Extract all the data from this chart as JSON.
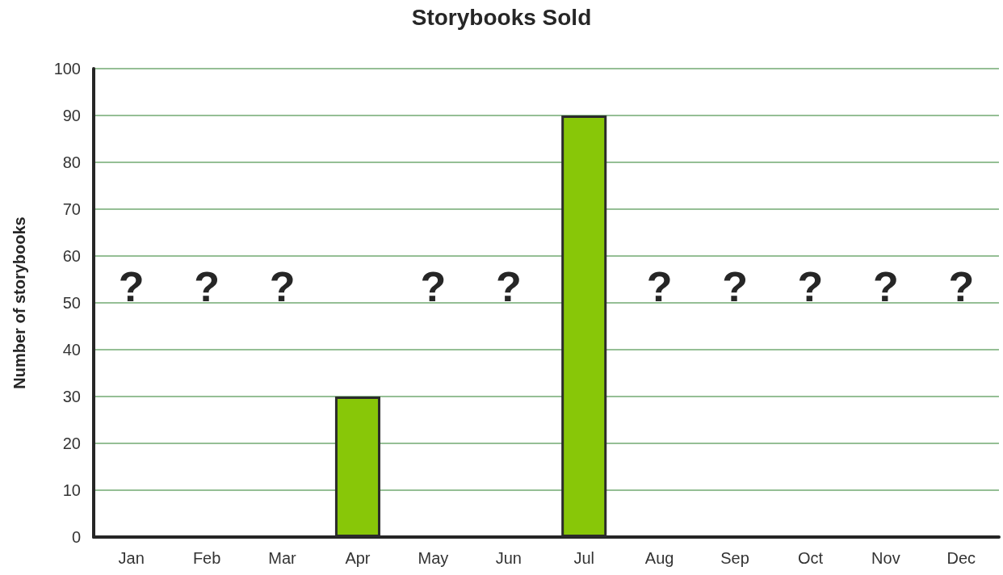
{
  "chart_data": {
    "type": "bar",
    "title": "Storybooks Sold",
    "ylabel": "Number of storybooks",
    "categories": [
      "Jan",
      "Feb",
      "Mar",
      "Apr",
      "May",
      "Jun",
      "Jul",
      "Aug",
      "Sep",
      "Oct",
      "Nov",
      "Dec"
    ],
    "values": [
      null,
      null,
      null,
      30,
      null,
      null,
      90,
      null,
      null,
      null,
      null,
      null
    ],
    "color": "#88c708",
    "ylim": [
      0,
      100
    ],
    "yticks": [
      0,
      10,
      20,
      30,
      40,
      50,
      60,
      70,
      80,
      90,
      100
    ],
    "grid": "y",
    "annotations": [
      "?",
      "?",
      "?",
      "?",
      "?",
      "?",
      "?",
      "?",
      "?",
      "?"
    ]
  }
}
